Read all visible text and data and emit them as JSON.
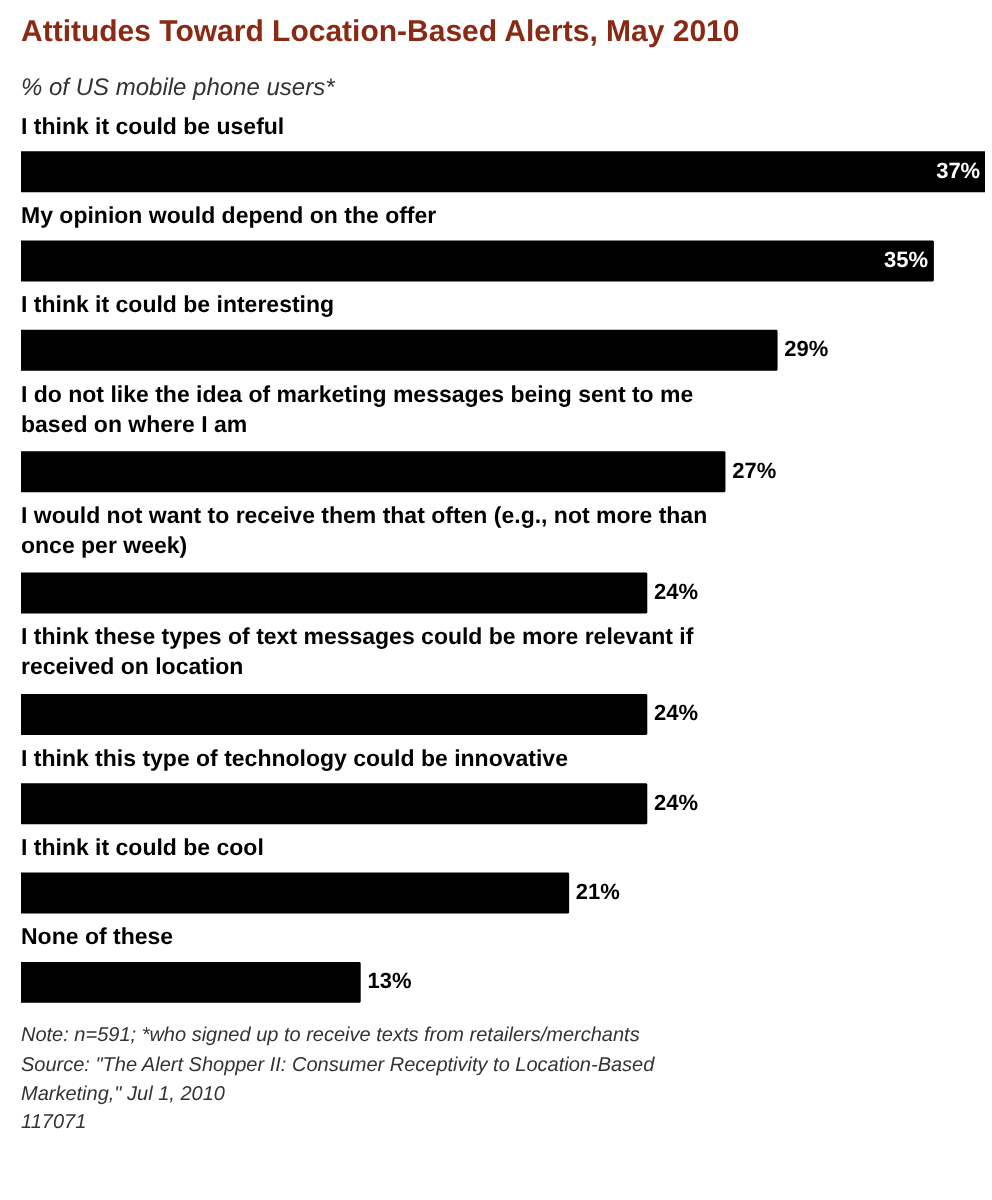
{
  "chart_data": {
    "type": "bar",
    "orientation": "horizontal",
    "title": "Attitudes Toward Location-Based Alerts, May 2010",
    "subtitle": "% of US mobile phone users*",
    "categories": [
      "I think it could be useful",
      "My opinion would depend on the offer",
      "I think it could be interesting",
      "I do not like the idea of marketing messages being sent to me based on where I am",
      "I would not want to receive them that often (e.g., not more than once per week)",
      "I think these types of text messages could be more relevant if received on location",
      "I think this type of technology could be innovative",
      "I think it could be cool",
      "None of these"
    ],
    "values": [
      37,
      35,
      29,
      27,
      24,
      24,
      24,
      21,
      13
    ],
    "value_labels": [
      "37%",
      "35%",
      "29%",
      "27%",
      "24%",
      "24%",
      "24%",
      "21%",
      "13%"
    ],
    "color": "#000000",
    "annotations": [
      "Note: n=591; *who signed up to receive texts from retailers/merchants",
      "Source: \"The Alert Shopper II: Consumer Receptivity to Location-Based Marketing,\" Jul 1, 2010",
      "117071"
    ]
  }
}
